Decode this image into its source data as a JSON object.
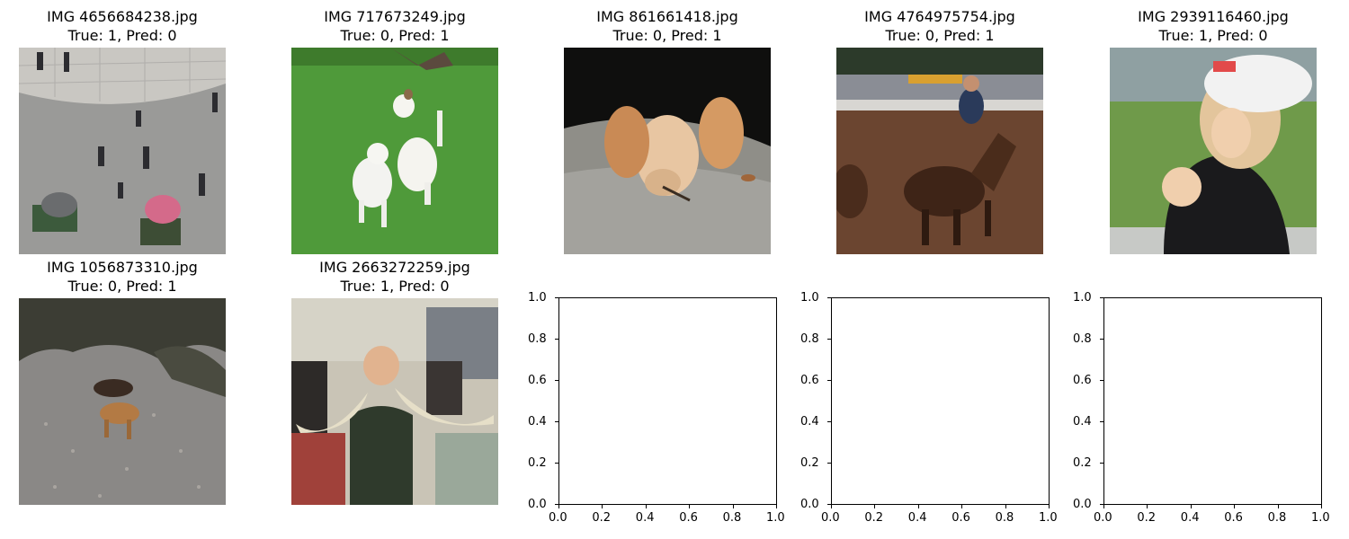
{
  "panels": [
    {
      "filename": "IMG 4656684238.jpg",
      "caption": "True: 1, Pred: 0",
      "scene": "plaza-people-icon"
    },
    {
      "filename": "IMG 717673249.jpg",
      "caption": "True: 0, Pred: 1",
      "scene": "dogs-on-grass-icon"
    },
    {
      "filename": "IMG 861661418.jpg",
      "caption": "True: 0, Pred: 1",
      "scene": "puppy-icon"
    },
    {
      "filename": "IMG 4764975754.jpg",
      "caption": "True: 0, Pred: 1",
      "scene": "rodeo-horse-icon"
    },
    {
      "filename": "IMG 2939116460.jpg",
      "caption": "True: 1, Pred: 0",
      "scene": "girl-helmet-icon"
    },
    {
      "filename": "IMG 1056873310.jpg",
      "caption": "True: 0, Pred: 1",
      "scene": "dog-on-beach-icon"
    },
    {
      "filename": "IMG 2663272259.jpg",
      "caption": "True: 1, Pred: 0",
      "scene": "boy-with-horns-icon"
    }
  ],
  "empty_axes": [
    {
      "x_ticks": [
        "0.0",
        "0.2",
        "0.4",
        "0.6",
        "0.8",
        "1.0"
      ],
      "y_ticks": [
        "0.0",
        "0.2",
        "0.4",
        "0.6",
        "0.8",
        "1.0"
      ]
    },
    {
      "x_ticks": [
        "0.0",
        "0.2",
        "0.4",
        "0.6",
        "0.8",
        "1.0"
      ],
      "y_ticks": [
        "0.0",
        "0.2",
        "0.4",
        "0.6",
        "0.8",
        "1.0"
      ]
    },
    {
      "x_ticks": [
        "0.0",
        "0.2",
        "0.4",
        "0.6",
        "0.8",
        "1.0"
      ],
      "y_ticks": [
        "0.0",
        "0.2",
        "0.4",
        "0.6",
        "0.8",
        "1.0"
      ]
    }
  ]
}
